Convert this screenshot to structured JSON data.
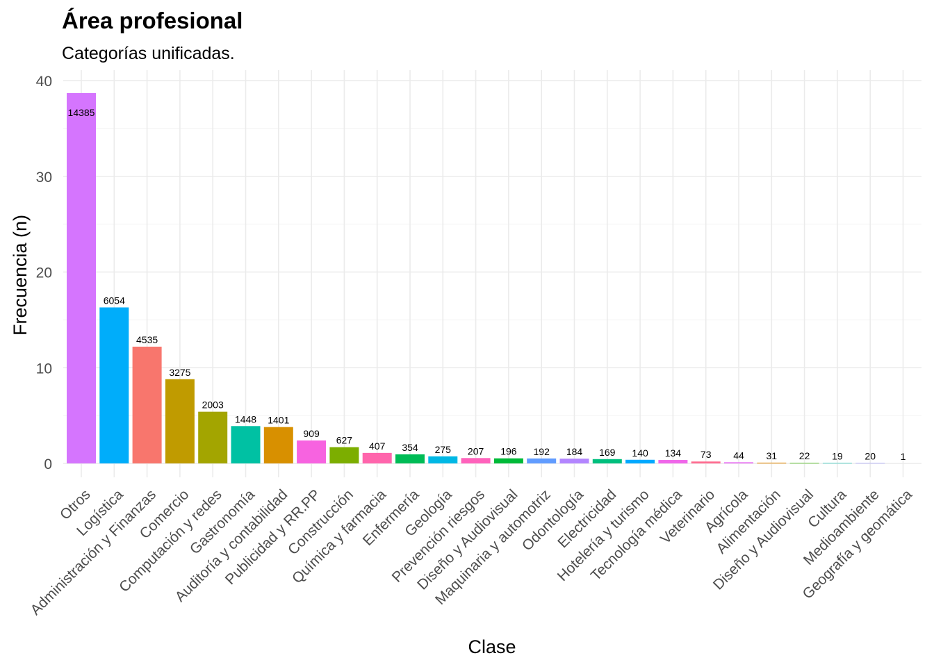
{
  "chart_data": {
    "type": "bar",
    "title": "Área profesional",
    "subtitle": "Categorías unificadas.",
    "xlabel": "Clase",
    "ylabel": "Frecuencia (n)",
    "ylim": [
      0,
      40
    ],
    "yticks": [
      0,
      10,
      20,
      30,
      40
    ],
    "grid": true,
    "legend": "none",
    "categories": [
      "Otros",
      "Logística",
      "Administración y Finanzas",
      "Comercio",
      "Computación y redes",
      "Gastronomía",
      "Auditoría y contabilidad",
      "Publicidad y RR.PP",
      "Construcción",
      "Química y farmacia",
      "Enfermería",
      "Geología",
      "Prevención riesgos",
      "Diseño y Audiovisual",
      "Maquinaria y automotriz",
      "Odontología",
      "Electricidad",
      "Hotelería y turismo",
      "Tecnología médica",
      "Veterinario",
      "Agrícola",
      "Alimentación",
      "Diseño y Audiovisual",
      "Cultura",
      "Medioambiente",
      "Geografía y geomática"
    ],
    "values": [
      38.7,
      16.3,
      12.2,
      8.8,
      5.4,
      3.9,
      3.8,
      2.4,
      1.7,
      1.1,
      0.95,
      0.74,
      0.56,
      0.53,
      0.52,
      0.5,
      0.45,
      0.38,
      0.36,
      0.2,
      0.12,
      0.08,
      0.06,
      0.05,
      0.05,
      0.0
    ],
    "labels": [
      "14385",
      "6054",
      "4535",
      "3275",
      "2003",
      "1448",
      "1401",
      "909",
      "627",
      "407",
      "354",
      "275",
      "207",
      "196",
      "192",
      "184",
      "169",
      "140",
      "134",
      "73",
      "44",
      "31",
      "22",
      "19",
      "20",
      "1"
    ],
    "colors": [
      "#D575FE",
      "#00ADFA",
      "#F8766D",
      "#C09B00",
      "#A3A500",
      "#00C1A3",
      "#D89000",
      "#F763E0",
      "#7CAE00",
      "#FF65AC",
      "#00BC56",
      "#00B8E5",
      "#FF62BC",
      "#00BA38",
      "#619CFF",
      "#B385FF",
      "#00BF7D",
      "#00A9FF",
      "#F066EA",
      "#FF6C90",
      "#E76BF3",
      "#E38900",
      "#39B600",
      "#00C0AF",
      "#9590FF",
      "#00B0F6"
    ]
  }
}
